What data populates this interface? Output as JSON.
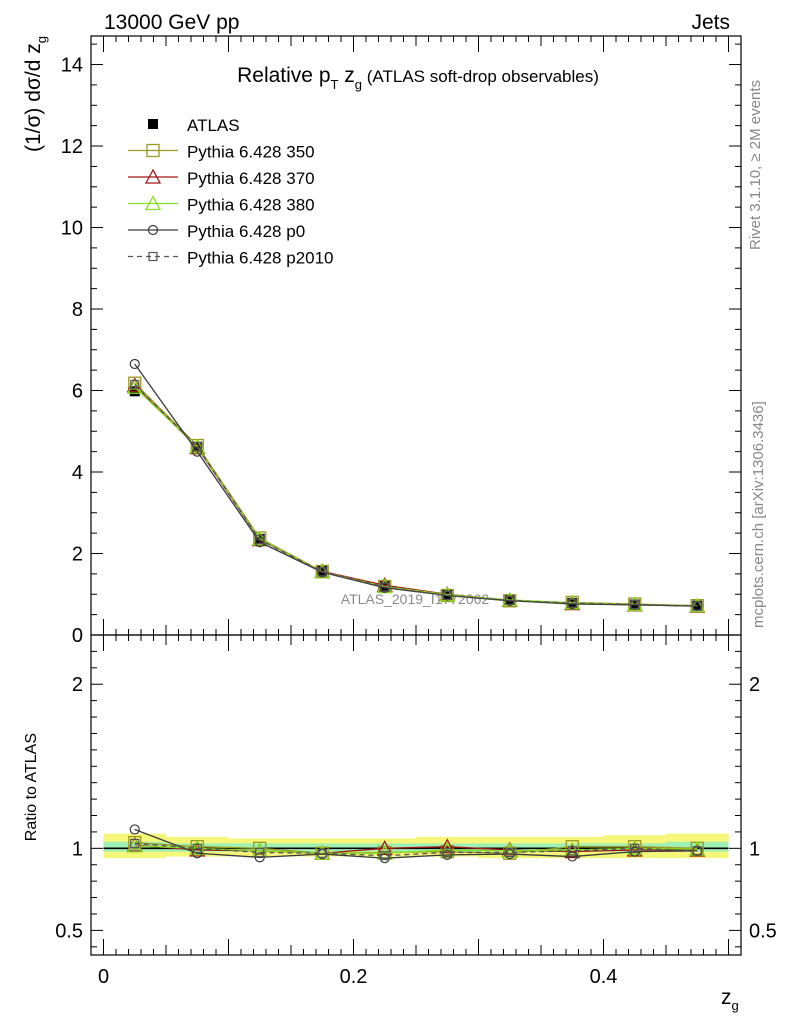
{
  "header": {
    "left": "13000 GeV pp",
    "right": "Jets"
  },
  "side_labels": {
    "rivet": "Rivet 3.1.10, ≥ 2M events",
    "mcplots": "mcplots.cern.ch [arXiv:1306.3436]"
  },
  "chart_data": {
    "type": "line",
    "title": {
      "pre": "Relative p",
      "sub1": "T",
      "mid": " z",
      "sub2": "g",
      "post": " (ATLAS soft-drop observables)"
    },
    "watermark": "ATLAS_2019_I1772062",
    "main": {
      "ylabel": {
        "pre": "(1/σ) dσ/d z",
        "sub": "g"
      },
      "ylim": [
        0,
        14.7
      ],
      "yticks": [
        0,
        2,
        4,
        6,
        8,
        10,
        12,
        14
      ],
      "ytick_labels": [
        "0",
        "2",
        "4",
        "6",
        "8",
        "10",
        "12",
        "14"
      ]
    },
    "ratio": {
      "ylabel": "Ratio to ATLAS",
      "ylim": [
        0.35,
        2.3
      ],
      "yticks": [
        0.5,
        1,
        2
      ],
      "ytick_labels": [
        "0.5",
        "1",
        "2"
      ]
    },
    "xlabel": {
      "pre": "z",
      "sub": "g"
    },
    "xlim": [
      -0.01,
      0.51
    ],
    "xticks": [
      0,
      0.2,
      0.4
    ],
    "xtick_labels": [
      "0",
      "0.2",
      "0.4"
    ],
    "x": [
      0.025,
      0.075,
      0.125,
      0.175,
      0.225,
      0.275,
      0.325,
      0.375,
      0.425,
      0.475
    ],
    "bin_edges": [
      0.0,
      0.05,
      0.1,
      0.15,
      0.2,
      0.25,
      0.3,
      0.35,
      0.4,
      0.45,
      0.5
    ],
    "data": {
      "name": "ATLAS",
      "values": [
        5.98,
        4.62,
        2.36,
        1.58,
        1.2,
        0.99,
        0.86,
        0.79,
        0.75,
        0.72
      ],
      "color": "#000000"
    },
    "ratio_band": {
      "outer": [
        [
          0.94,
          1.09
        ],
        [
          0.95,
          1.07
        ],
        [
          0.95,
          1.06
        ],
        [
          0.95,
          1.06
        ],
        [
          0.95,
          1.06
        ],
        [
          0.95,
          1.07
        ],
        [
          0.94,
          1.07
        ],
        [
          0.94,
          1.07
        ],
        [
          0.94,
          1.08
        ],
        [
          0.94,
          1.09
        ]
      ],
      "inner": [
        [
          0.98,
          1.04
        ],
        [
          0.98,
          1.03
        ],
        [
          0.98,
          1.03
        ],
        [
          0.98,
          1.03
        ],
        [
          0.98,
          1.03
        ],
        [
          0.98,
          1.03
        ],
        [
          0.98,
          1.03
        ],
        [
          0.98,
          1.03
        ],
        [
          0.98,
          1.03
        ],
        [
          0.98,
          1.04
        ]
      ],
      "outer_color": "#f6f67a",
      "inner_color": "#9ff0b4"
    },
    "series": [
      {
        "name": "Pythia 6.428 350",
        "color": "#9a9a20",
        "marker": "square-open",
        "dash": "solid",
        "values": [
          6.18,
          4.65,
          2.38,
          1.56,
          1.19,
          0.97,
          0.84,
          0.8,
          0.76,
          0.72
        ],
        "ratio": [
          1.035,
          1.01,
          1.0,
          0.97,
          0.975,
          0.98,
          0.97,
          1.01,
          1.01,
          1.0
        ]
      },
      {
        "name": "Pythia 6.428 370",
        "color": "#a01818",
        "marker": "triangle-open",
        "dash": "solid",
        "values": [
          6.12,
          4.6,
          2.34,
          1.56,
          1.22,
          1.0,
          0.85,
          0.77,
          0.74,
          0.71
        ],
        "ratio": [
          1.02,
          0.99,
          0.985,
          0.97,
          1.0,
          1.01,
          0.99,
          0.98,
          0.99,
          0.99
        ]
      },
      {
        "name": "Pythia 6.428 380",
        "color": "#88dd22",
        "marker": "triangle-open",
        "dash": "solid",
        "values": [
          6.08,
          4.62,
          2.36,
          1.55,
          1.19,
          0.99,
          0.86,
          0.79,
          0.75,
          0.72
        ],
        "ratio": [
          1.015,
          1.0,
          0.985,
          0.97,
          0.97,
          0.99,
          0.985,
          0.99,
          1.0,
          0.995
        ]
      },
      {
        "name": "Pythia 6.428 p0",
        "color": "#3a3a3a",
        "marker": "circle-open",
        "dash": "solid",
        "values": [
          6.65,
          4.5,
          2.28,
          1.54,
          1.16,
          0.97,
          0.84,
          0.76,
          0.74,
          0.71
        ],
        "ratio": [
          1.115,
          0.97,
          0.945,
          0.965,
          0.94,
          0.96,
          0.965,
          0.95,
          0.98,
          0.985
        ]
      },
      {
        "name": "Pythia 6.428 p2010",
        "color": "#555555",
        "marker": "square-small-open",
        "dash": "dashed",
        "values": [
          6.15,
          4.62,
          2.34,
          1.55,
          1.18,
          0.97,
          0.85,
          0.78,
          0.75,
          0.71
        ],
        "ratio": [
          1.03,
          1.0,
          0.975,
          0.97,
          0.955,
          0.975,
          0.975,
          0.985,
          1.0,
          0.985
        ]
      }
    ],
    "legend": {
      "position": "top-left"
    }
  }
}
